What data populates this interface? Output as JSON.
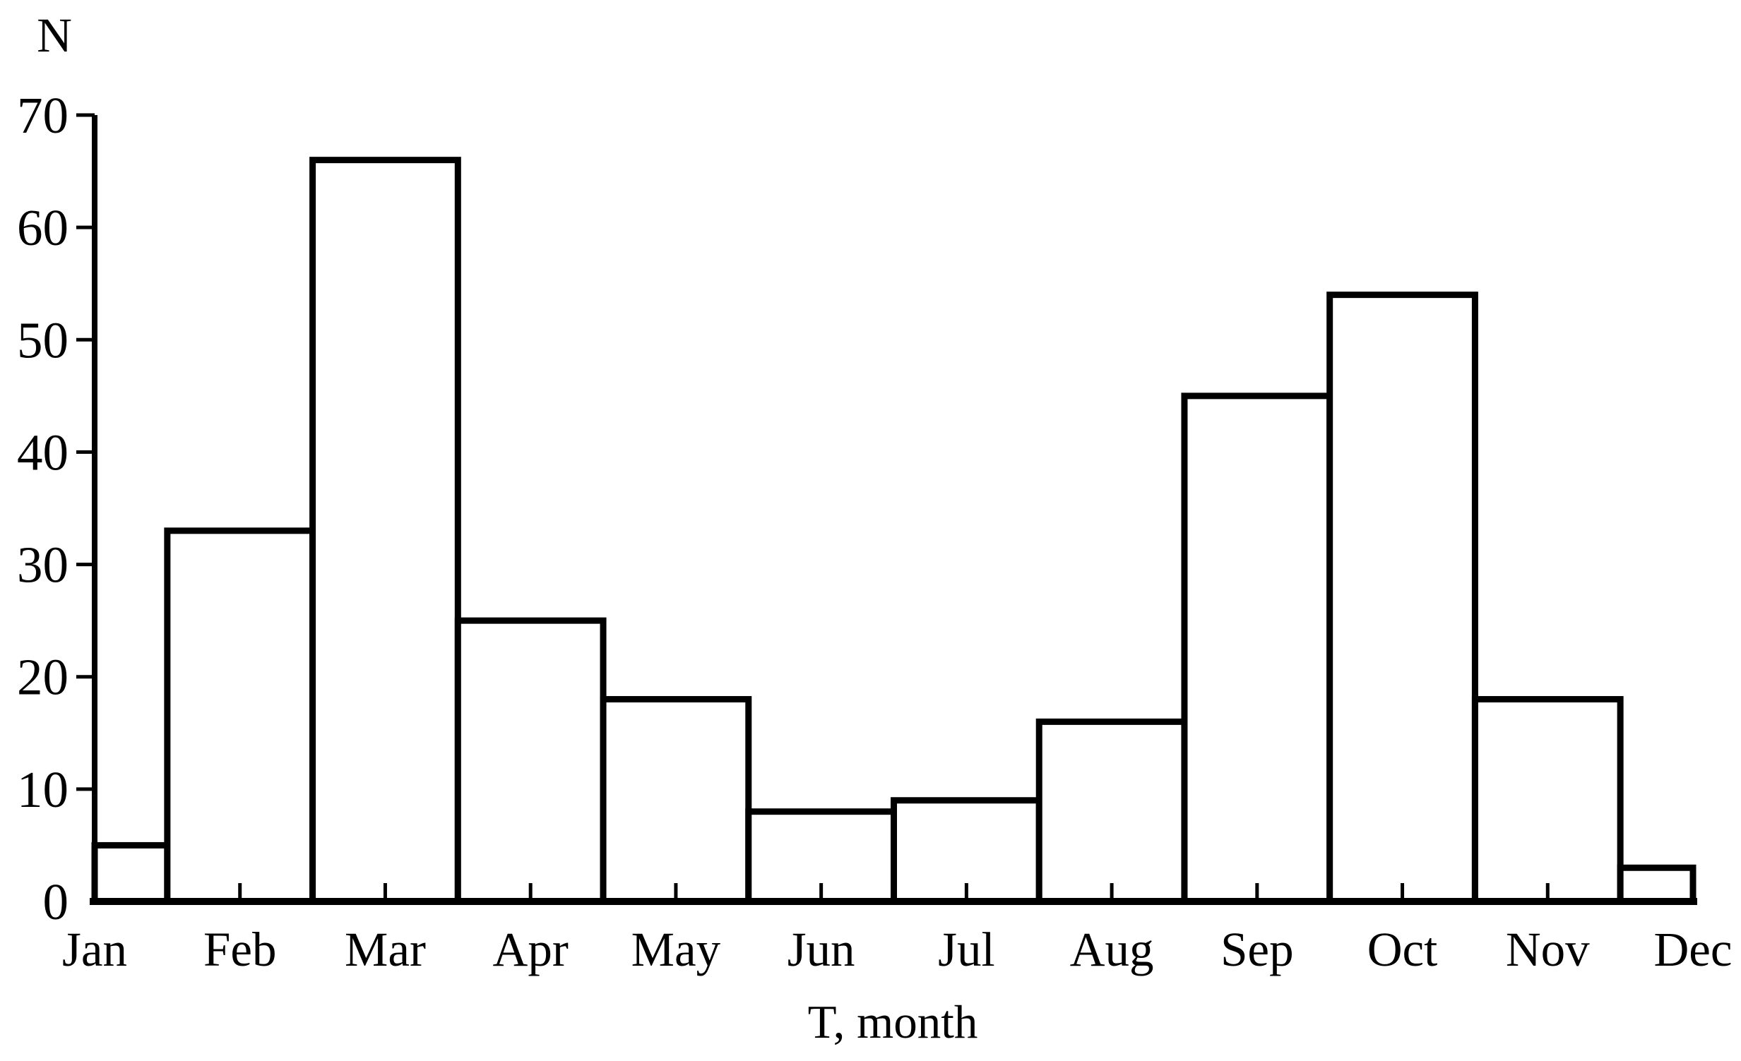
{
  "page": {
    "background_color": "#ffffff"
  },
  "chart_data": {
    "type": "bar",
    "variant": "histogram-outline",
    "title": "",
    "categories": [
      "Jan",
      "Feb",
      "Mar",
      "Apr",
      "May",
      "Jun",
      "Jul",
      "Aug",
      "Sep",
      "Oct",
      "Nov",
      "Dec"
    ],
    "values": [
      5,
      33,
      66,
      25,
      18,
      8,
      9,
      16,
      45,
      54,
      18,
      3
    ],
    "xlabel": "T, month",
    "ylabel": "N",
    "ylim": [
      0,
      70
    ],
    "yticks": [
      0,
      10,
      20,
      30,
      40,
      50,
      60,
      70
    ],
    "grid": false,
    "legend": "none",
    "bar_fill": "#ffffff",
    "stroke_color": "#000000",
    "x_ticks_shown_for": [
      "Feb",
      "Mar",
      "Apr",
      "May",
      "Jun",
      "Jul",
      "Aug",
      "Sep",
      "Oct",
      "Nov"
    ],
    "first_last_bars_half_width": true
  }
}
